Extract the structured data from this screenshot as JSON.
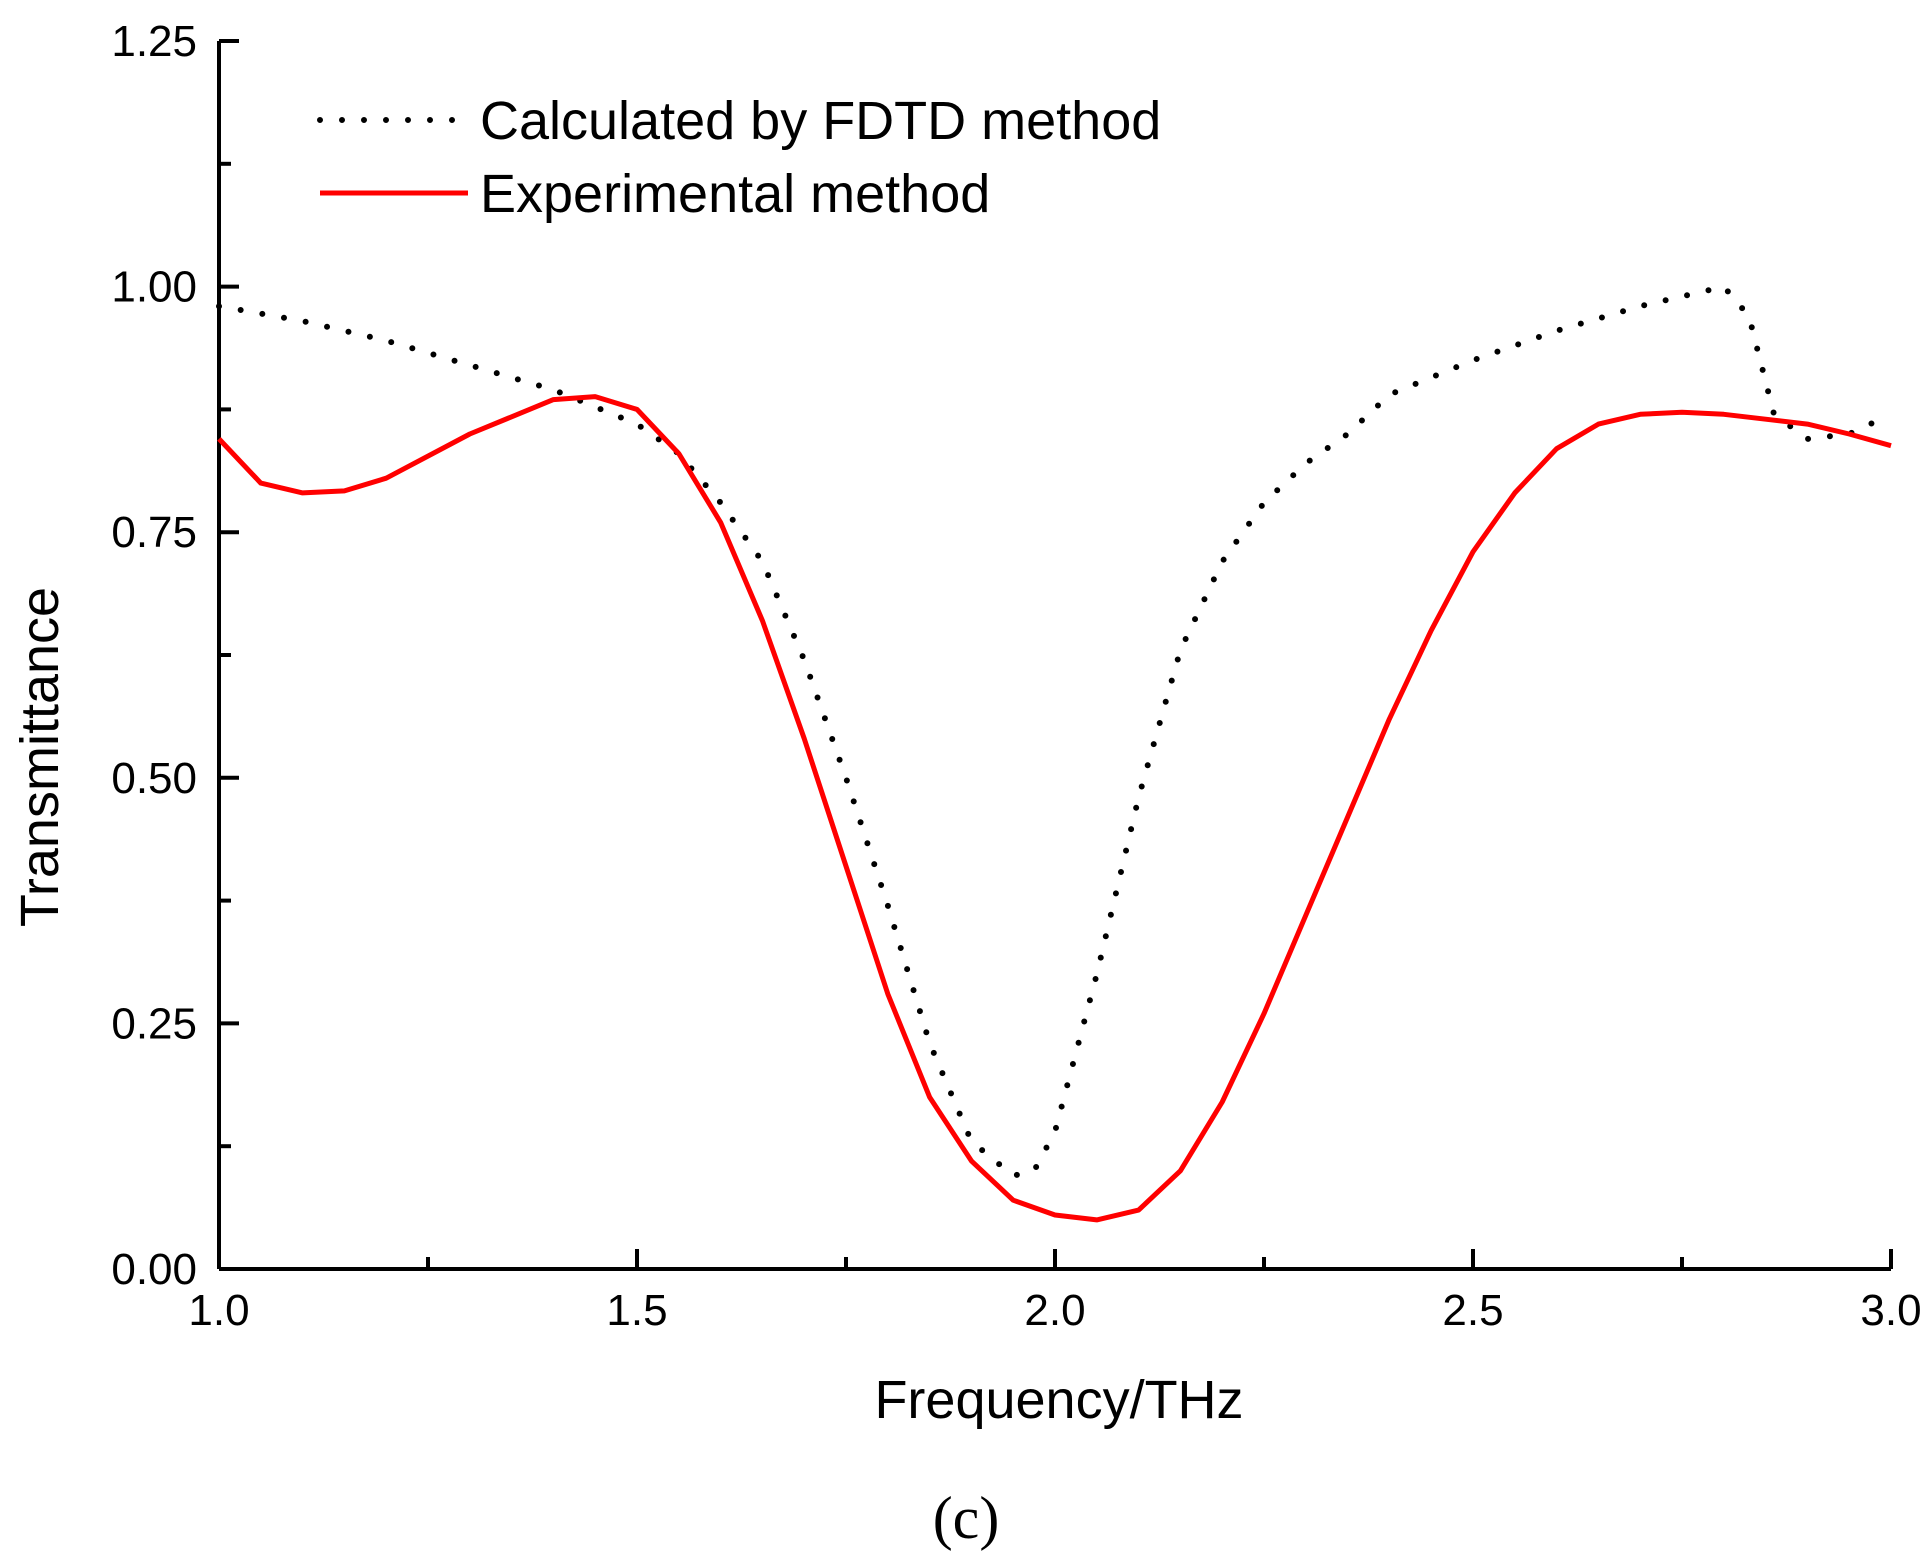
{
  "chart_data": {
    "type": "line",
    "title": "",
    "xlabel": "Frequency/THz",
    "ylabel": "Transmittance",
    "panel_label": "(c)",
    "xlim": [
      1.0,
      3.0
    ],
    "ylim": [
      0.0,
      1.25
    ],
    "xticks": [
      1.0,
      1.25,
      1.5,
      1.75,
      2.0,
      2.25,
      2.5,
      2.75,
      3.0
    ],
    "xtick_labels": [
      "1.0",
      "1.5",
      "2.0",
      "2.5",
      "3.0"
    ],
    "xtick_label_values": [
      1.0,
      1.5,
      2.0,
      2.5,
      3.0
    ],
    "yticks": [
      0.0,
      0.125,
      0.25,
      0.375,
      0.5,
      0.625,
      0.75,
      0.875,
      1.0,
      1.125,
      1.25
    ],
    "ytick_labels": [
      "0.00",
      "0.25",
      "0.50",
      "0.75",
      "1.00",
      "1.25"
    ],
    "ytick_label_values": [
      0.0,
      0.25,
      0.5,
      0.75,
      1.0,
      1.25
    ],
    "grid": false,
    "legend_position": "top-left",
    "series": [
      {
        "name": "Calculated by FDTD method",
        "style": "dotted",
        "color": "#000000",
        "x": [
          1.0,
          1.1,
          1.2,
          1.3,
          1.4,
          1.5,
          1.55,
          1.6,
          1.65,
          1.7,
          1.75,
          1.8,
          1.85,
          1.9,
          1.95,
          1.975,
          2.0,
          2.05,
          2.1,
          2.15,
          2.2,
          2.25,
          2.3,
          2.35,
          2.4,
          2.5,
          2.6,
          2.7,
          2.8,
          2.83,
          2.86,
          2.9,
          2.95,
          3.0
        ],
        "values": [
          0.98,
          0.965,
          0.945,
          0.92,
          0.895,
          0.86,
          0.83,
          0.78,
          0.72,
          0.62,
          0.5,
          0.37,
          0.23,
          0.13,
          0.095,
          0.1,
          0.14,
          0.3,
          0.48,
          0.63,
          0.72,
          0.78,
          0.82,
          0.85,
          0.89,
          0.925,
          0.955,
          0.98,
          1.0,
          0.97,
          0.87,
          0.845,
          0.85,
          0.87
        ]
      },
      {
        "name": "Experimental method",
        "style": "solid",
        "color": "#ff0000",
        "x": [
          1.0,
          1.05,
          1.1,
          1.15,
          1.2,
          1.3,
          1.4,
          1.45,
          1.5,
          1.55,
          1.6,
          1.65,
          1.7,
          1.75,
          1.8,
          1.85,
          1.9,
          1.95,
          2.0,
          2.05,
          2.1,
          2.15,
          2.2,
          2.25,
          2.3,
          2.35,
          2.4,
          2.45,
          2.5,
          2.55,
          2.6,
          2.65,
          2.7,
          2.75,
          2.8,
          2.85,
          2.9,
          2.95,
          3.0
        ],
        "values": [
          0.845,
          0.8,
          0.79,
          0.792,
          0.805,
          0.85,
          0.885,
          0.888,
          0.875,
          0.83,
          0.76,
          0.66,
          0.54,
          0.41,
          0.28,
          0.175,
          0.11,
          0.07,
          0.055,
          0.05,
          0.06,
          0.1,
          0.17,
          0.26,
          0.36,
          0.46,
          0.56,
          0.65,
          0.73,
          0.79,
          0.835,
          0.86,
          0.87,
          0.872,
          0.87,
          0.865,
          0.86,
          0.85,
          0.838
        ]
      }
    ]
  }
}
